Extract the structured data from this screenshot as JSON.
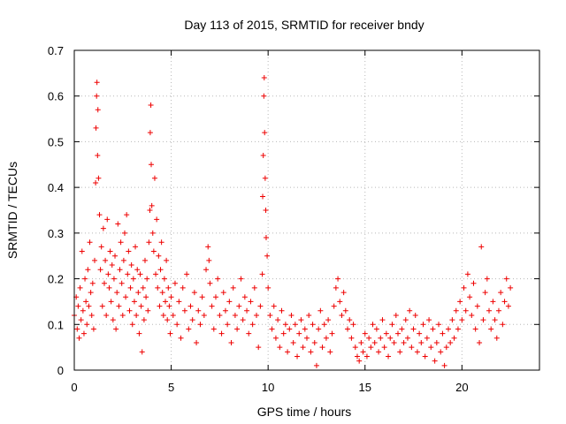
{
  "chart_data": {
    "type": "scatter",
    "title": "Day 113 of 2015, SRMTID for receiver bndy",
    "xlabel": "GPS time / hours",
    "ylabel": "SRMTID / TECUs",
    "xlim": [
      0,
      24
    ],
    "ylim": [
      0,
      0.7
    ],
    "xticks": [
      0,
      5,
      10,
      15,
      20
    ],
    "yticks": [
      0,
      0.1,
      0.2,
      0.3,
      0.4,
      0.5,
      0.6,
      0.7
    ],
    "xtick_labels": [
      "0",
      "5",
      "10",
      "15",
      "20"
    ],
    "ytick_labels": [
      "0",
      "0.1",
      "0.2",
      "0.3",
      "0.4",
      "0.5",
      "0.6",
      "0.7"
    ],
    "grid": true,
    "marker": "+",
    "color": "#ee0000",
    "series": [
      {
        "name": "SRMTID",
        "points": [
          [
            0.0,
            0.12
          ],
          [
            0.1,
            0.16
          ],
          [
            0.15,
            0.09
          ],
          [
            0.2,
            0.14
          ],
          [
            0.25,
            0.07
          ],
          [
            0.3,
            0.18
          ],
          [
            0.35,
            0.11
          ],
          [
            0.4,
            0.26
          ],
          [
            0.45,
            0.13
          ],
          [
            0.5,
            0.08
          ],
          [
            0.55,
            0.2
          ],
          [
            0.6,
            0.15
          ],
          [
            0.65,
            0.1
          ],
          [
            0.7,
            0.22
          ],
          [
            0.75,
            0.14
          ],
          [
            0.8,
            0.28
          ],
          [
            0.85,
            0.17
          ],
          [
            0.9,
            0.12
          ],
          [
            0.95,
            0.19
          ],
          [
            1.0,
            0.09
          ],
          [
            1.05,
            0.24
          ],
          [
            1.1,
            0.41
          ],
          [
            1.12,
            0.53
          ],
          [
            1.15,
            0.6
          ],
          [
            1.17,
            0.63
          ],
          [
            1.2,
            0.47
          ],
          [
            1.22,
            0.57
          ],
          [
            1.25,
            0.42
          ],
          [
            1.3,
            0.34
          ],
          [
            1.35,
            0.22
          ],
          [
            1.4,
            0.27
          ],
          [
            1.45,
            0.14
          ],
          [
            1.5,
            0.31
          ],
          [
            1.55,
            0.19
          ],
          [
            1.6,
            0.24
          ],
          [
            1.65,
            0.12
          ],
          [
            1.7,
            0.33
          ],
          [
            1.75,
            0.21
          ],
          [
            1.8,
            0.18
          ],
          [
            1.85,
            0.26
          ],
          [
            1.9,
            0.15
          ],
          [
            1.95,
            0.23
          ],
          [
            2.0,
            0.11
          ],
          [
            2.05,
            0.2
          ],
          [
            2.1,
            0.25
          ],
          [
            2.15,
            0.09
          ],
          [
            2.2,
            0.17
          ],
          [
            2.25,
            0.32
          ],
          [
            2.3,
            0.14
          ],
          [
            2.35,
            0.22
          ],
          [
            2.4,
            0.28
          ],
          [
            2.45,
            0.19
          ],
          [
            2.5,
            0.12
          ],
          [
            2.55,
            0.24
          ],
          [
            2.6,
            0.3
          ],
          [
            2.65,
            0.16
          ],
          [
            2.7,
            0.34
          ],
          [
            2.75,
            0.21
          ],
          [
            2.8,
            0.26
          ],
          [
            2.85,
            0.13
          ],
          [
            2.9,
            0.18
          ],
          [
            2.95,
            0.23
          ],
          [
            3.0,
            0.1
          ],
          [
            3.05,
            0.2
          ],
          [
            3.1,
            0.15
          ],
          [
            3.15,
            0.27
          ],
          [
            3.2,
            0.12
          ],
          [
            3.25,
            0.22
          ],
          [
            3.3,
            0.17
          ],
          [
            3.35,
            0.08
          ],
          [
            3.4,
            0.21
          ],
          [
            3.45,
            0.14
          ],
          [
            3.5,
            0.04
          ],
          [
            3.55,
            0.18
          ],
          [
            3.6,
            0.11
          ],
          [
            3.65,
            0.24
          ],
          [
            3.7,
            0.16
          ],
          [
            3.75,
            0.2
          ],
          [
            3.8,
            0.13
          ],
          [
            3.85,
            0.28
          ],
          [
            3.9,
            0.35
          ],
          [
            3.92,
            0.52
          ],
          [
            3.95,
            0.58
          ],
          [
            3.97,
            0.45
          ],
          [
            4.0,
            0.36
          ],
          [
            4.05,
            0.3
          ],
          [
            4.1,
            0.26
          ],
          [
            4.15,
            0.42
          ],
          [
            4.2,
            0.21
          ],
          [
            4.25,
            0.33
          ],
          [
            4.3,
            0.18
          ],
          [
            4.35,
            0.25
          ],
          [
            4.4,
            0.14
          ],
          [
            4.45,
            0.22
          ],
          [
            4.5,
            0.28
          ],
          [
            4.55,
            0.17
          ],
          [
            4.6,
            0.12
          ],
          [
            4.65,
            0.2
          ],
          [
            4.7,
            0.15
          ],
          [
            4.75,
            0.24
          ],
          [
            4.8,
            0.11
          ],
          [
            4.85,
            0.18
          ],
          [
            4.9,
            0.14
          ],
          [
            4.95,
            0.08
          ],
          [
            5.0,
            0.16
          ],
          [
            5.1,
            0.12
          ],
          [
            5.2,
            0.19
          ],
          [
            5.3,
            0.1
          ],
          [
            5.4,
            0.15
          ],
          [
            5.5,
            0.07
          ],
          [
            5.6,
            0.18
          ],
          [
            5.7,
            0.13
          ],
          [
            5.8,
            0.21
          ],
          [
            5.9,
            0.09
          ],
          [
            6.0,
            0.14
          ],
          [
            6.1,
            0.11
          ],
          [
            6.2,
            0.17
          ],
          [
            6.3,
            0.06
          ],
          [
            6.4,
            0.13
          ],
          [
            6.5,
            0.1
          ],
          [
            6.6,
            0.16
          ],
          [
            6.7,
            0.12
          ],
          [
            6.8,
            0.22
          ],
          [
            6.9,
            0.27
          ],
          [
            6.95,
            0.24
          ],
          [
            7.0,
            0.19
          ],
          [
            7.1,
            0.14
          ],
          [
            7.2,
            0.09
          ],
          [
            7.3,
            0.16
          ],
          [
            7.4,
            0.2
          ],
          [
            7.5,
            0.12
          ],
          [
            7.6,
            0.08
          ],
          [
            7.7,
            0.17
          ],
          [
            7.8,
            0.13
          ],
          [
            7.9,
            0.1
          ],
          [
            8.0,
            0.15
          ],
          [
            8.1,
            0.06
          ],
          [
            8.2,
            0.18
          ],
          [
            8.3,
            0.12
          ],
          [
            8.4,
            0.09
          ],
          [
            8.5,
            0.14
          ],
          [
            8.6,
            0.2
          ],
          [
            8.7,
            0.11
          ],
          [
            8.8,
            0.16
          ],
          [
            8.9,
            0.13
          ],
          [
            9.0,
            0.08
          ],
          [
            9.1,
            0.15
          ],
          [
            9.2,
            0.1
          ],
          [
            9.3,
            0.18
          ],
          [
            9.4,
            0.12
          ],
          [
            9.5,
            0.05
          ],
          [
            9.6,
            0.14
          ],
          [
            9.7,
            0.21
          ],
          [
            9.72,
            0.38
          ],
          [
            9.75,
            0.47
          ],
          [
            9.78,
            0.6
          ],
          [
            9.8,
            0.64
          ],
          [
            9.82,
            0.52
          ],
          [
            9.85,
            0.42
          ],
          [
            9.88,
            0.35
          ],
          [
            9.9,
            0.29
          ],
          [
            9.95,
            0.25
          ],
          [
            10.0,
            0.18
          ],
          [
            10.1,
            0.12
          ],
          [
            10.2,
            0.09
          ],
          [
            10.3,
            0.14
          ],
          [
            10.4,
            0.07
          ],
          [
            10.5,
            0.11
          ],
          [
            10.6,
            0.05
          ],
          [
            10.7,
            0.13
          ],
          [
            10.8,
            0.08
          ],
          [
            10.9,
            0.1
          ],
          [
            11.0,
            0.04
          ],
          [
            11.1,
            0.09
          ],
          [
            11.2,
            0.12
          ],
          [
            11.3,
            0.06
          ],
          [
            11.4,
            0.1
          ],
          [
            11.5,
            0.03
          ],
          [
            11.6,
            0.08
          ],
          [
            11.7,
            0.11
          ],
          [
            11.8,
            0.05
          ],
          [
            11.9,
            0.09
          ],
          [
            12.0,
            0.07
          ],
          [
            12.1,
            0.12
          ],
          [
            12.2,
            0.04
          ],
          [
            12.3,
            0.1
          ],
          [
            12.4,
            0.06
          ],
          [
            12.5,
            0.01
          ],
          [
            12.6,
            0.09
          ],
          [
            12.7,
            0.13
          ],
          [
            12.8,
            0.05
          ],
          [
            12.9,
            0.1
          ],
          [
            13.0,
            0.07
          ],
          [
            13.1,
            0.11
          ],
          [
            13.2,
            0.04
          ],
          [
            13.3,
            0.08
          ],
          [
            13.4,
            0.14
          ],
          [
            13.5,
            0.18
          ],
          [
            13.6,
            0.2
          ],
          [
            13.7,
            0.15
          ],
          [
            13.8,
            0.12
          ],
          [
            13.9,
            0.17
          ],
          [
            14.0,
            0.13
          ],
          [
            14.1,
            0.09
          ],
          [
            14.2,
            0.11
          ],
          [
            14.3,
            0.07
          ],
          [
            14.4,
            0.1
          ],
          [
            14.5,
            0.05
          ],
          [
            14.6,
            0.03
          ],
          [
            14.7,
            0.02
          ],
          [
            14.8,
            0.06
          ],
          [
            14.9,
            0.04
          ],
          [
            15.0,
            0.08
          ],
          [
            15.1,
            0.03
          ],
          [
            15.2,
            0.07
          ],
          [
            15.3,
            0.05
          ],
          [
            15.4,
            0.1
          ],
          [
            15.5,
            0.06
          ],
          [
            15.6,
            0.09
          ],
          [
            15.7,
            0.04
          ],
          [
            15.8,
            0.07
          ],
          [
            15.9,
            0.11
          ],
          [
            16.0,
            0.05
          ],
          [
            16.1,
            0.08
          ],
          [
            16.2,
            0.03
          ],
          [
            16.3,
            0.07
          ],
          [
            16.4,
            0.1
          ],
          [
            16.5,
            0.06
          ],
          [
            16.6,
            0.12
          ],
          [
            16.7,
            0.08
          ],
          [
            16.8,
            0.04
          ],
          [
            16.9,
            0.09
          ],
          [
            17.0,
            0.06
          ],
          [
            17.1,
            0.11
          ],
          [
            17.2,
            0.07
          ],
          [
            17.3,
            0.13
          ],
          [
            17.4,
            0.05
          ],
          [
            17.5,
            0.09
          ],
          [
            17.6,
            0.12
          ],
          [
            17.7,
            0.04
          ],
          [
            17.8,
            0.08
          ],
          [
            17.9,
            0.06
          ],
          [
            18.0,
            0.1
          ],
          [
            18.1,
            0.03
          ],
          [
            18.2,
            0.07
          ],
          [
            18.3,
            0.11
          ],
          [
            18.4,
            0.05
          ],
          [
            18.5,
            0.09
          ],
          [
            18.6,
            0.02
          ],
          [
            18.7,
            0.06
          ],
          [
            18.8,
            0.1
          ],
          [
            18.9,
            0.04
          ],
          [
            19.0,
            0.08
          ],
          [
            19.1,
            0.01
          ],
          [
            19.2,
            0.05
          ],
          [
            19.3,
            0.09
          ],
          [
            19.4,
            0.06
          ],
          [
            19.5,
            0.11
          ],
          [
            19.6,
            0.07
          ],
          [
            19.7,
            0.13
          ],
          [
            19.8,
            0.09
          ],
          [
            19.9,
            0.15
          ],
          [
            20.0,
            0.11
          ],
          [
            20.1,
            0.18
          ],
          [
            20.2,
            0.13
          ],
          [
            20.3,
            0.21
          ],
          [
            20.4,
            0.16
          ],
          [
            20.5,
            0.12
          ],
          [
            20.6,
            0.19
          ],
          [
            20.7,
            0.09
          ],
          [
            20.8,
            0.14
          ],
          [
            20.9,
            0.06
          ],
          [
            21.0,
            0.27
          ],
          [
            21.1,
            0.11
          ],
          [
            21.2,
            0.17
          ],
          [
            21.3,
            0.2
          ],
          [
            21.4,
            0.13
          ],
          [
            21.5,
            0.09
          ],
          [
            21.6,
            0.15
          ],
          [
            21.7,
            0.11
          ],
          [
            21.8,
            0.07
          ],
          [
            21.9,
            0.13
          ],
          [
            22.0,
            0.17
          ],
          [
            22.1,
            0.1
          ],
          [
            22.2,
            0.15
          ],
          [
            22.3,
            0.2
          ],
          [
            22.4,
            0.14
          ],
          [
            22.5,
            0.18
          ]
        ]
      }
    ]
  }
}
